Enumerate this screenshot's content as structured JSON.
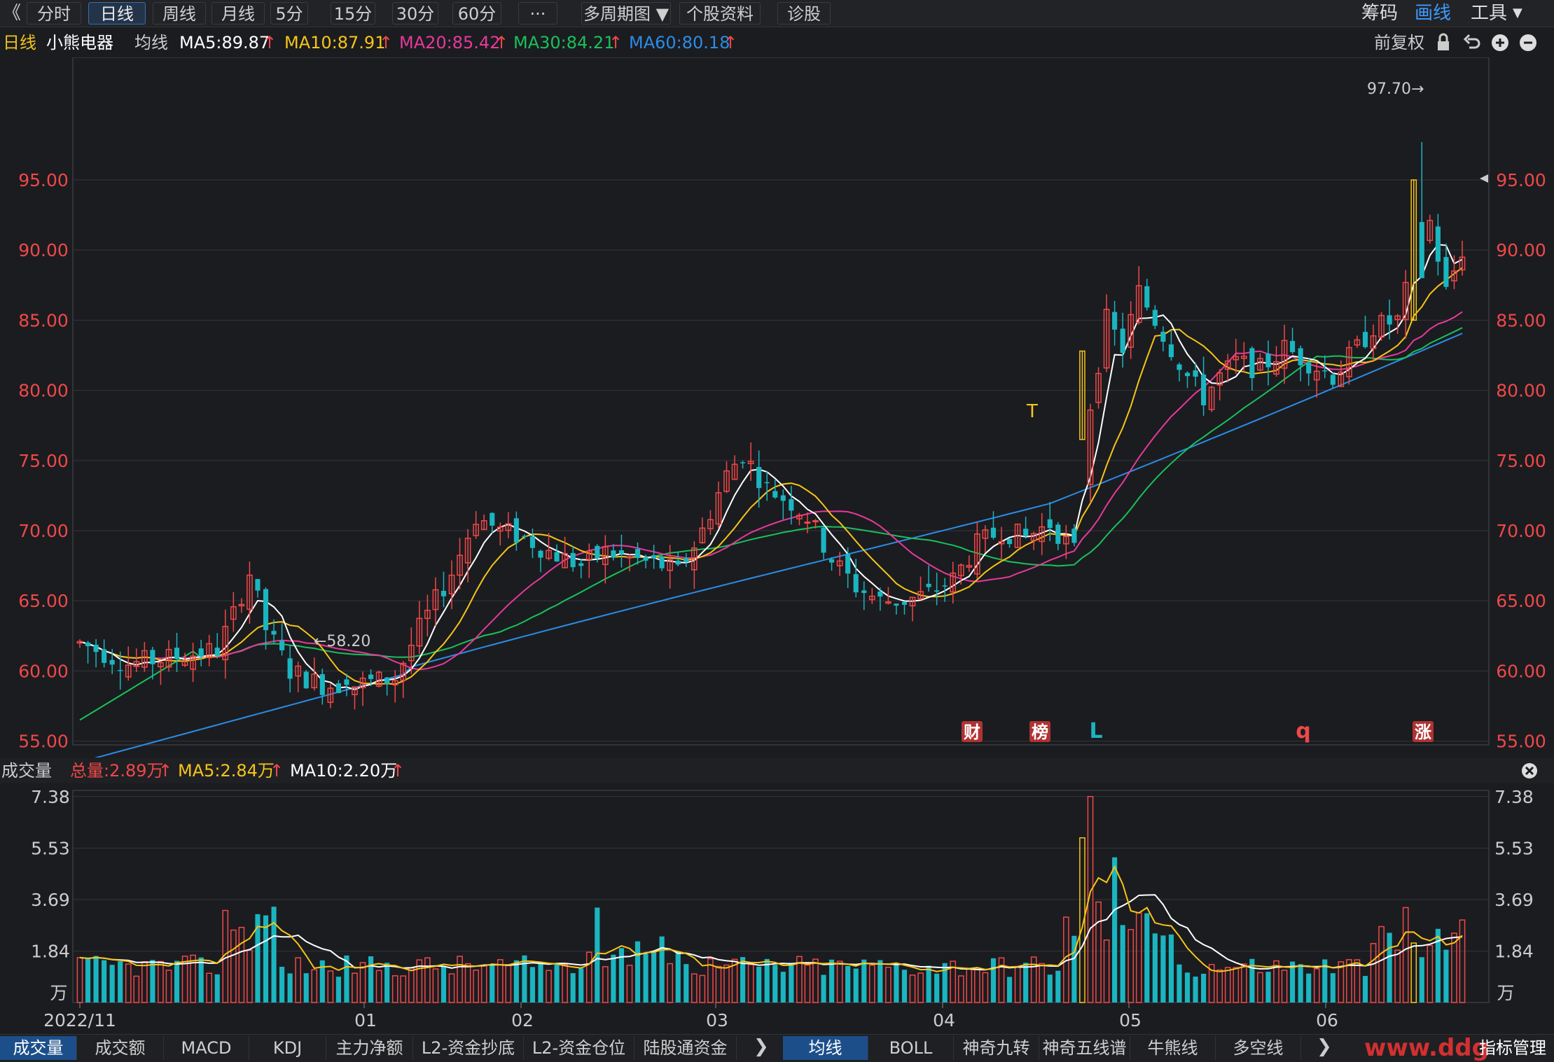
{
  "toolbar": {
    "back": "《",
    "tabs": [
      "分时",
      "日线",
      "周线",
      "月线",
      "5分",
      "15分",
      "30分",
      "60分",
      "···",
      "多周期图",
      "个股资料",
      "诊股"
    ],
    "dropdown": "▼",
    "right": [
      "筹码",
      "画线",
      "工具"
    ]
  },
  "info": {
    "period": "日线",
    "stock": "小熊电器",
    "ma_label": "均线",
    "ma5": "MA5:89.87",
    "ma10": "MA10:87.91",
    "ma20": "MA20:85.42",
    "ma30": "MA30:84.21",
    "ma60": "MA60:80.18",
    "arrow": "↑",
    "right_label": "前复权"
  },
  "volume_info": {
    "title": "成交量",
    "total": "总量:2.89万",
    "ma5": "MA5:2.84万",
    "ma10": "MA10:2.20万",
    "arrow": "↑"
  },
  "bottom_tabs_left": [
    "成交量",
    "成交额",
    "MACD",
    "KDJ",
    "主力净额",
    "L2-资金抄底",
    "L2-资金仓位",
    "陆股通资金"
  ],
  "bottom_tabs_right": [
    "均线",
    "BOLL",
    "神奇九转",
    "神奇五线谱",
    "牛熊线",
    "多空线"
  ],
  "bottom_right": "指标管理",
  "watermark": "www.ddg",
  "colors": {
    "up": "#f04848",
    "down": "#1bb5c0",
    "ma5": "#ffffff",
    "ma10": "#f5c518",
    "ma20": "#e6399b",
    "ma30": "#19c15b",
    "ma60": "#2b8ce6"
  },
  "chart_data": [
    {
      "type": "candlestick",
      "title": "小熊电器 日线",
      "y_axis_ticks": [
        "55.00",
        "60.00",
        "65.00",
        "70.00",
        "75.00",
        "80.00",
        "85.00",
        "90.00",
        "95.00"
      ],
      "ylim": [
        51,
        99
      ],
      "x_axis_ticks": [
        "2022/11",
        "01",
        "02",
        "03",
        "04",
        "05",
        "06"
      ],
      "annotations": {
        "high": "97.70→",
        "low": "←58.20"
      },
      "event_markers": [
        "财",
        "榜",
        "L",
        "q",
        "涨"
      ],
      "special_marker": "T",
      "ma_last": {
        "MA5": 89.87,
        "MA10": 87.91,
        "MA20": 85.42,
        "MA30": 84.21,
        "MA60": 80.18
      }
    },
    {
      "type": "bar",
      "title": "成交量",
      "unit": "万",
      "y_axis_ticks": [
        "7.38",
        "5.53",
        "3.69",
        "1.84"
      ],
      "ylim": [
        0,
        7.38
      ]
    }
  ]
}
